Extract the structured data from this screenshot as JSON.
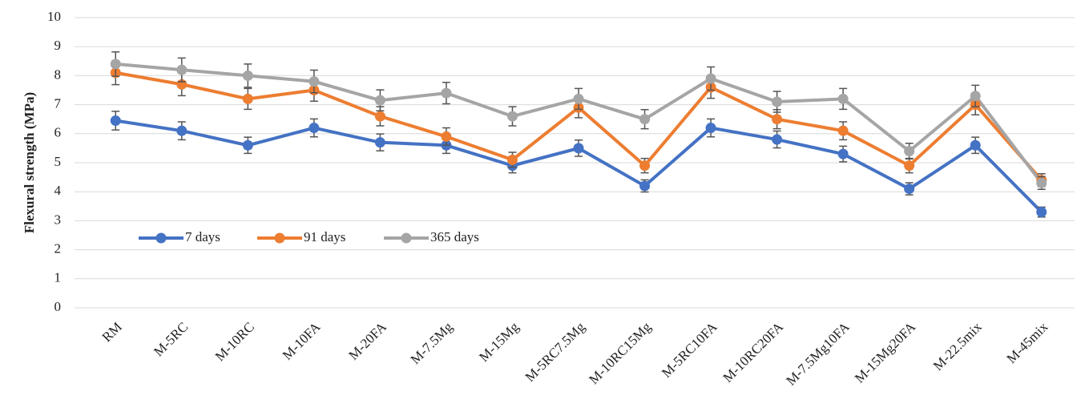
{
  "chart_data": {
    "type": "line",
    "y_label": "Flexural strength (MPa)",
    "categories": [
      "RM",
      "M-5RC",
      "M-10RC",
      "M-10FA",
      "M-20FA",
      "M-7.5Mg",
      "M-15Mg",
      "M-5RC7.5Mg",
      "M-10RC15Mg",
      "M-5RC10FA",
      "M-10RC20FA",
      "M-7.5Mg10FA",
      "M-15Mg20FA",
      "M-22.5mix",
      "M-45mix"
    ],
    "series": [
      {
        "name": "7 days",
        "color": "#4472c4",
        "values": [
          6.45,
          6.1,
          5.6,
          6.2,
          5.7,
          5.6,
          4.9,
          5.5,
          4.2,
          6.2,
          5.8,
          5.3,
          4.1,
          5.6,
          3.3
        ],
        "errors": [
          0.32,
          0.31,
          0.28,
          0.31,
          0.29,
          0.28,
          0.25,
          0.28,
          0.21,
          0.31,
          0.29,
          0.27,
          0.21,
          0.28,
          0.17
        ]
      },
      {
        "name": "91 days",
        "color": "#ed7d31",
        "values": [
          8.1,
          7.7,
          7.2,
          7.5,
          6.6,
          5.9,
          5.1,
          6.9,
          4.9,
          7.6,
          6.5,
          6.1,
          4.9,
          7.0,
          4.4
        ],
        "errors": [
          0.41,
          0.39,
          0.36,
          0.38,
          0.33,
          0.3,
          0.26,
          0.35,
          0.25,
          0.38,
          0.33,
          0.31,
          0.25,
          0.35,
          0.22
        ]
      },
      {
        "name": "365 days",
        "color": "#a5a5a5",
        "values": [
          8.4,
          8.2,
          8.0,
          7.8,
          7.15,
          7.4,
          6.6,
          7.2,
          6.5,
          7.9,
          7.1,
          7.2,
          5.4,
          7.3,
          4.3
        ],
        "errors": [
          0.42,
          0.41,
          0.4,
          0.39,
          0.36,
          0.37,
          0.33,
          0.36,
          0.33,
          0.4,
          0.36,
          0.36,
          0.27,
          0.37,
          0.22
        ]
      }
    ],
    "ylim": [
      0,
      10
    ],
    "yticks": [
      0,
      1,
      2,
      3,
      4,
      5,
      6,
      7,
      8,
      9,
      10
    ],
    "grid": true,
    "legend": "inside-lower-left"
  }
}
